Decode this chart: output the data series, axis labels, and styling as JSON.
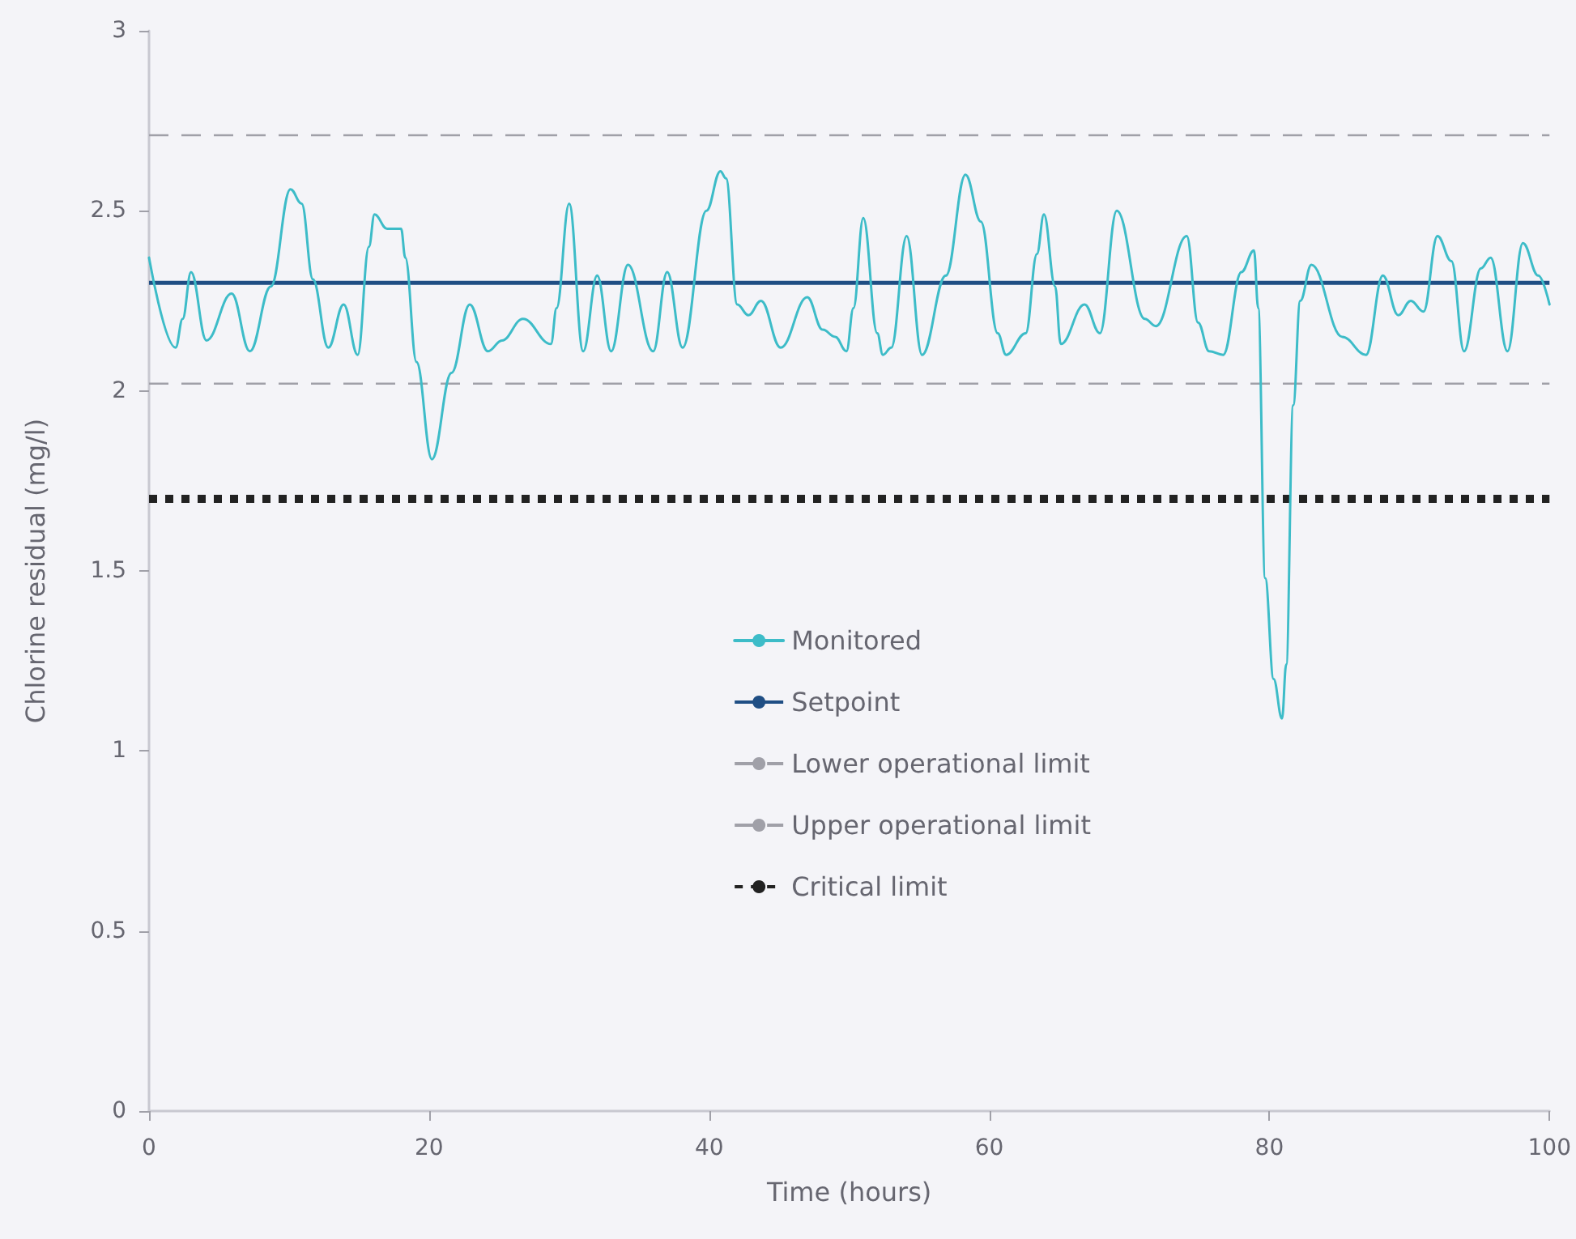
{
  "chart_data": {
    "type": "line",
    "xlabel": "Time (hours)",
    "ylabel": "Chlorine residual (mg/l)",
    "xlim": [
      0,
      100
    ],
    "xticks": [
      0,
      20,
      40,
      60,
      80,
      100
    ],
    "ylim": [
      0,
      3
    ],
    "yticks": [
      0,
      0.5,
      1,
      1.5,
      2,
      2.5,
      3
    ],
    "grid": false,
    "legend": "center",
    "marker": "none",
    "line_style": "solid",
    "series": [
      {
        "name": "Monitored",
        "color": "#3dbcc8",
        "x": [
          0,
          1.9,
          2.4,
          3.0,
          4.1,
          5.9,
          7.2,
          8.7,
          10.1,
          10.9,
          11.7,
          12.8,
          13.9,
          14.9,
          15.7,
          16.1,
          17.0,
          18.0,
          18.3,
          19.1,
          20.2,
          21.6,
          22.9,
          24.2,
          25.2,
          26.7,
          28.7,
          29.1,
          30.0,
          31.0,
          32.0,
          33.0,
          34.2,
          36.0,
          37.0,
          38.1,
          39.8,
          40.8,
          41.2,
          42.0,
          42.8,
          43.7,
          45.1,
          47.0,
          48.1,
          49.0,
          49.8,
          50.3,
          51.0,
          52.0,
          52.4,
          53.0,
          54.1,
          55.2,
          56.9,
          58.3,
          59.4,
          60.6,
          61.2,
          62.6,
          63.4,
          63.9,
          64.7,
          65.1,
          66.8,
          67.9,
          69.1,
          71.1,
          71.9,
          74.1,
          74.9,
          75.7,
          76.7,
          78.0,
          78.9,
          79.2,
          79.7,
          80.3,
          80.9,
          81.2,
          81.7,
          82.2,
          83.0,
          85.2,
          86.9,
          88.1,
          89.2,
          90.1,
          91.0,
          92.0,
          93.0,
          93.9,
          95.1,
          95.8,
          97.0,
          98.1,
          99.2,
          100
        ],
        "values": [
          2.37,
          2.12,
          2.2,
          2.33,
          2.14,
          2.27,
          2.11,
          2.29,
          2.56,
          2.52,
          2.31,
          2.12,
          2.24,
          2.1,
          2.4,
          2.49,
          2.45,
          2.45,
          2.37,
          2.08,
          1.81,
          2.05,
          2.24,
          2.11,
          2.14,
          2.2,
          2.13,
          2.23,
          2.52,
          2.11,
          2.32,
          2.11,
          2.35,
          2.11,
          2.33,
          2.12,
          2.5,
          2.61,
          2.59,
          2.24,
          2.21,
          2.25,
          2.12,
          2.26,
          2.17,
          2.15,
          2.11,
          2.23,
          2.48,
          2.16,
          2.1,
          2.12,
          2.43,
          2.1,
          2.32,
          2.6,
          2.47,
          2.16,
          2.1,
          2.16,
          2.38,
          2.49,
          2.29,
          2.13,
          2.24,
          2.16,
          2.5,
          2.2,
          2.18,
          2.43,
          2.19,
          2.11,
          2.1,
          2.33,
          2.39,
          2.23,
          1.48,
          1.2,
          1.09,
          1.24,
          1.96,
          2.25,
          2.35,
          2.15,
          2.1,
          2.32,
          2.21,
          2.25,
          2.22,
          2.43,
          2.36,
          2.11,
          2.34,
          2.37,
          2.11,
          2.41,
          2.32,
          2.24
        ]
      }
    ],
    "ref_lines": [
      {
        "axis": "y",
        "value": 2.3,
        "label": "Setpoint",
        "color": "#1f4e84",
        "line_style": "solid"
      },
      {
        "axis": "y",
        "value": 2.02,
        "label": "Lower operational limit",
        "color": "#a0a0a8",
        "line_style": "dashed"
      },
      {
        "axis": "y",
        "value": 2.71,
        "label": "Upper operational limit",
        "color": "#a0a0a8",
        "line_style": "dashed"
      },
      {
        "axis": "y",
        "value": 1.7,
        "label": "Critical limit",
        "color": "#222222",
        "line_style": "dotted"
      }
    ]
  }
}
